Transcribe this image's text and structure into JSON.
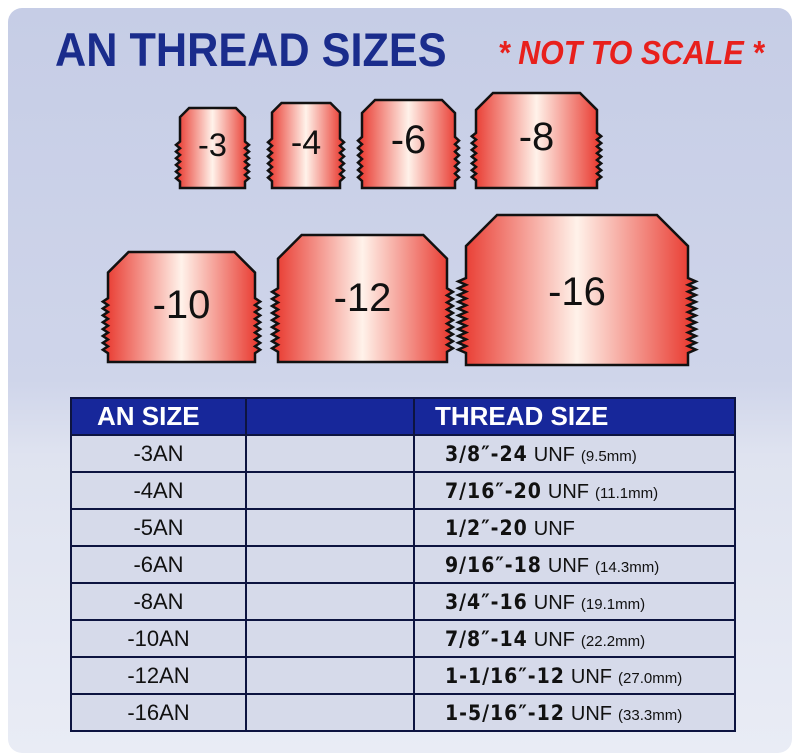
{
  "title": "AN THREAD SIZES",
  "note": "* NOT TO SCALE *",
  "colors": {
    "title": "#1a2c8c",
    "note": "#e8201c",
    "header_bg": "#17279a",
    "fitting_edge": "#e8342a",
    "fitting_center": "#fff2ea"
  },
  "fittings": [
    "-3",
    "-4",
    "-6",
    "-8",
    "-10",
    "-12",
    "-16"
  ],
  "table": {
    "headers": [
      "AN SIZE",
      "",
      "THREAD SIZE"
    ],
    "rows": [
      {
        "an": "-3AN",
        "thread": "3/8″-24",
        "unf": "UNF",
        "mm": "(9.5mm)"
      },
      {
        "an": "-4AN",
        "thread": "7/16″-20",
        "unf": "UNF",
        "mm": "(11.1mm)"
      },
      {
        "an": "-5AN",
        "thread": "1/2″-20",
        "unf": "UNF",
        "mm": ""
      },
      {
        "an": "-6AN",
        "thread": "9/16″-18",
        "unf": "UNF",
        "mm": "(14.3mm)"
      },
      {
        "an": "-8AN",
        "thread": "3/4″-16",
        "unf": "UNF",
        "mm": "(19.1mm)"
      },
      {
        "an": "-10AN",
        "thread": "7/8″-14",
        "unf": "UNF",
        "mm": "(22.2mm)"
      },
      {
        "an": "-12AN",
        "thread": "1-1/16″-12",
        "unf": "UNF",
        "mm": "(27.0mm)"
      },
      {
        "an": "-16AN",
        "thread": "1-5/16″-12",
        "unf": "UNF",
        "mm": "(33.3mm)"
      }
    ]
  }
}
